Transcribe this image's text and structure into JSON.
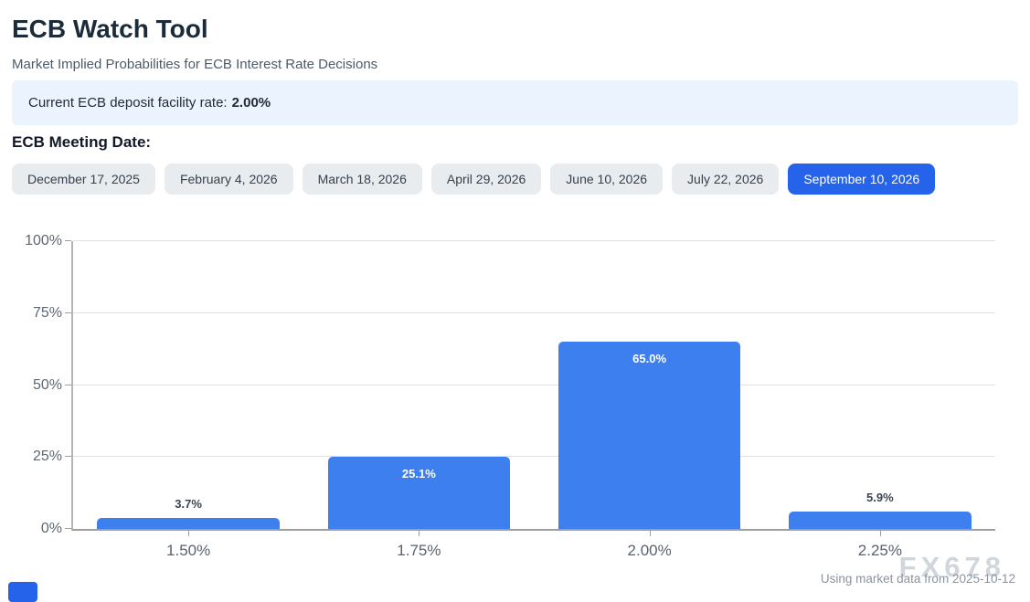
{
  "header": {
    "title": "ECB Watch Tool",
    "subtitle": "Market Implied Probabilities for ECB Interest Rate Decisions"
  },
  "banner": {
    "label": "Current ECB deposit facility rate:",
    "value": "2.00%"
  },
  "meeting": {
    "heading": "ECB Meeting Date:",
    "dates": [
      {
        "label": "December 17, 2025",
        "selected": false
      },
      {
        "label": "February 4, 2026",
        "selected": false
      },
      {
        "label": "March 18, 2026",
        "selected": false
      },
      {
        "label": "April 29, 2026",
        "selected": false
      },
      {
        "label": "June 10, 2026",
        "selected": false
      },
      {
        "label": "July 22, 2026",
        "selected": false
      },
      {
        "label": "September 10, 2026",
        "selected": true
      }
    ]
  },
  "chart_data": {
    "type": "bar",
    "title": "",
    "xlabel": "",
    "ylabel": "",
    "categories": [
      "1.50%",
      "1.75%",
      "2.00%",
      "2.25%"
    ],
    "values": [
      3.7,
      25.1,
      65.0,
      5.9
    ],
    "bar_labels": [
      "3.7%",
      "25.1%",
      "65.0%",
      "5.9%"
    ],
    "yticks": [
      "0%",
      "25%",
      "50%",
      "75%",
      "100%"
    ],
    "ylim": [
      0,
      100
    ],
    "grid": true,
    "legend": "none",
    "bar_color": "#3e7ff0",
    "label_inside_threshold": 10
  },
  "footer": {
    "note": "Using market data from 2025-10-12",
    "watermark": "FX678"
  },
  "colors": {
    "accent": "#2563eb",
    "banner_bg": "#eaf3fe",
    "button_bg": "#e9ecef",
    "bar_blue": "#3e7ff0"
  }
}
